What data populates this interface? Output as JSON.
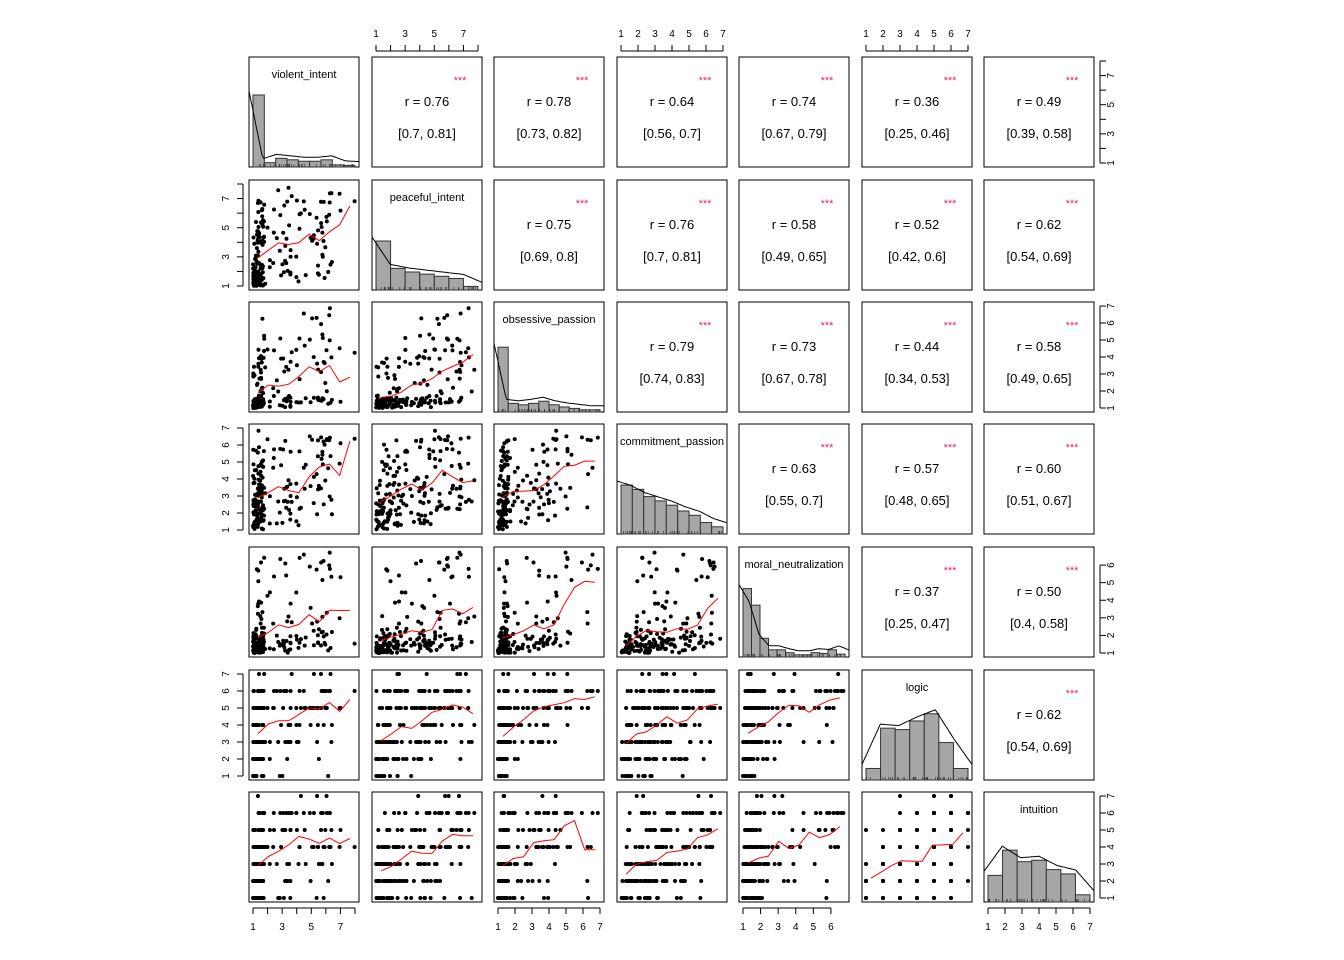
{
  "chart_data": {
    "type": "scatter-matrix",
    "variables": [
      "violent_intent",
      "peaceful_intent",
      "obsessive_passion",
      "commitment_passion",
      "moral_neutralization",
      "logic",
      "intuition"
    ],
    "ranges": [
      [
        1,
        8
      ],
      [
        1,
        8
      ],
      [
        1,
        7
      ],
      [
        1,
        7
      ],
      [
        1,
        6.8
      ],
      [
        1,
        7
      ],
      [
        1,
        7
      ]
    ],
    "discrete": [
      false,
      false,
      false,
      false,
      false,
      true,
      true
    ],
    "axis_ticks": [
      [
        1,
        2,
        3,
        4,
        5,
        6,
        7,
        8
      ],
      [
        1,
        2,
        3,
        4,
        5,
        6,
        7,
        8
      ],
      [
        1,
        2,
        3,
        4,
        5,
        6,
        7
      ],
      [
        1,
        2,
        3,
        4,
        5,
        6,
        7
      ],
      [
        1,
        2,
        3,
        4,
        5,
        6
      ],
      [
        1,
        2,
        3,
        4,
        5,
        6,
        7
      ],
      [
        1,
        2,
        3,
        4,
        5,
        6,
        7
      ]
    ],
    "axis_tick_labels": [
      [
        "1",
        "",
        "3",
        "",
        "5",
        "",
        "7",
        ""
      ],
      [
        "1",
        "",
        "3",
        "",
        "5",
        "",
        "7",
        ""
      ],
      [
        "1",
        "2",
        "3",
        "4",
        "5",
        "6",
        "7"
      ],
      [
        "1",
        "2",
        "3",
        "4",
        "5",
        "6",
        "7"
      ],
      [
        "1",
        "2",
        "3",
        "4",
        "5",
        "6"
      ],
      [
        "1",
        "2",
        "3",
        "4",
        "5",
        "6",
        "7"
      ],
      [
        "1",
        "2",
        "3",
        "4",
        "5",
        "6",
        "7"
      ]
    ],
    "correlations": [
      {
        "row": 0,
        "col": 1,
        "r": "r  = 0.76",
        "ci": "[0.7, 0.81]",
        "sig": "***"
      },
      {
        "row": 0,
        "col": 2,
        "r": "r  = 0.78",
        "ci": "[0.73, 0.82]",
        "sig": "***"
      },
      {
        "row": 0,
        "col": 3,
        "r": "r  = 0.64",
        "ci": "[0.56, 0.7]",
        "sig": "***"
      },
      {
        "row": 0,
        "col": 4,
        "r": "r  = 0.74",
        "ci": "[0.67, 0.79]",
        "sig": "***"
      },
      {
        "row": 0,
        "col": 5,
        "r": "r  = 0.36",
        "ci": "[0.25, 0.46]",
        "sig": "***"
      },
      {
        "row": 0,
        "col": 6,
        "r": "r  = 0.49",
        "ci": "[0.39, 0.58]",
        "sig": "***"
      },
      {
        "row": 1,
        "col": 2,
        "r": "r  = 0.75",
        "ci": "[0.69, 0.8]",
        "sig": "***"
      },
      {
        "row": 1,
        "col": 3,
        "r": "r  = 0.76",
        "ci": "[0.7, 0.81]",
        "sig": "***"
      },
      {
        "row": 1,
        "col": 4,
        "r": "r  = 0.58",
        "ci": "[0.49, 0.65]",
        "sig": "***"
      },
      {
        "row": 1,
        "col": 5,
        "r": "r  = 0.52",
        "ci": "[0.42, 0.6]",
        "sig": "***"
      },
      {
        "row": 1,
        "col": 6,
        "r": "r  = 0.62",
        "ci": "[0.54, 0.69]",
        "sig": "***"
      },
      {
        "row": 2,
        "col": 3,
        "r": "r  = 0.79",
        "ci": "[0.74, 0.83]",
        "sig": "***"
      },
      {
        "row": 2,
        "col": 4,
        "r": "r  = 0.73",
        "ci": "[0.67, 0.78]",
        "sig": "***"
      },
      {
        "row": 2,
        "col": 5,
        "r": "r  = 0.44",
        "ci": "[0.34, 0.53]",
        "sig": "***"
      },
      {
        "row": 2,
        "col": 6,
        "r": "r  = 0.58",
        "ci": "[0.49, 0.65]",
        "sig": "***"
      },
      {
        "row": 3,
        "col": 4,
        "r": "r  = 0.63",
        "ci": "[0.55, 0.7]",
        "sig": "***"
      },
      {
        "row": 3,
        "col": 5,
        "r": "r  = 0.57",
        "ci": "[0.48, 0.65]",
        "sig": "***"
      },
      {
        "row": 3,
        "col": 6,
        "r": "r  = 0.60",
        "ci": "[0.51, 0.67]",
        "sig": "***"
      },
      {
        "row": 4,
        "col": 5,
        "r": "r  = 0.37",
        "ci": "[0.25, 0.47]",
        "sig": "***"
      },
      {
        "row": 4,
        "col": 6,
        "r": "r  = 0.50",
        "ci": "[0.4, 0.58]",
        "sig": "***"
      },
      {
        "row": 5,
        "col": 6,
        "r": "r  = 0.62",
        "ci": "[0.54, 0.69]",
        "sig": "***"
      }
    ],
    "histograms": [
      [
        1.0,
        0.06,
        0.12,
        0.1,
        0.08,
        0.08,
        0.1,
        0.03,
        0.02
      ],
      [
        0.68,
        0.3,
        0.25,
        0.22,
        0.19,
        0.16,
        0.05
      ],
      [
        0.9,
        0.12,
        0.1,
        0.12,
        0.15,
        0.1,
        0.07,
        0.05,
        0.03,
        0.03
      ],
      [
        0.68,
        0.62,
        0.52,
        0.46,
        0.4,
        0.32,
        0.26,
        0.16,
        0.1
      ],
      [
        0.95,
        0.72,
        0.26,
        0.1,
        0.1,
        0.06,
        0.03,
        0.03,
        0.06,
        0.05,
        0.1,
        0.04
      ],
      [
        0.16,
        0.72,
        0.7,
        0.82,
        0.92,
        0.52,
        0.16
      ],
      [
        0.37,
        0.72,
        0.56,
        0.58,
        0.45,
        0.39,
        0.1
      ]
    ],
    "colors": {
      "hist_fill": "#a6a6a6",
      "fit_line": "#ff0000",
      "stars": "#df2f5f",
      "points": "#000000"
    }
  }
}
